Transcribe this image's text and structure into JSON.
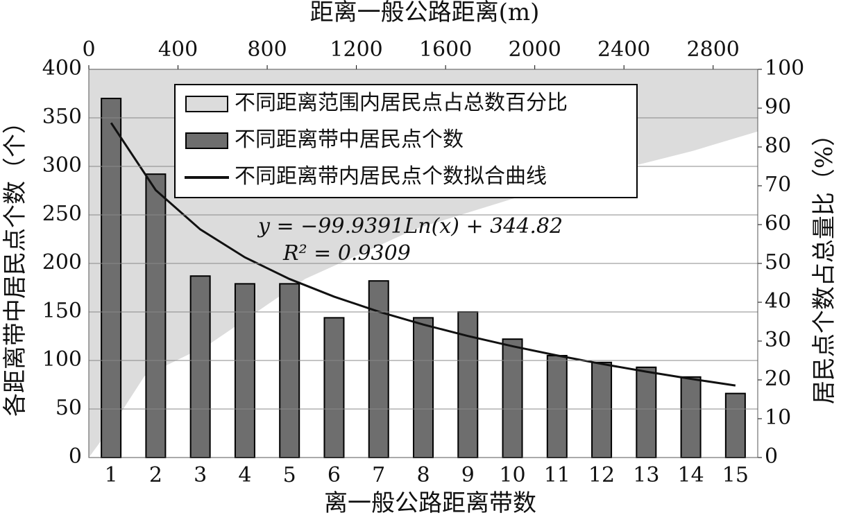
{
  "chart_data": {
    "type": "bar",
    "title": "距离一般公路距离(m)",
    "x_label": "离一般公路距离带数",
    "y_label": "各距离带中居民点个数（个）",
    "y2_label": "居民点个数占总量比（%）",
    "annotations": [
      "y = −99.9391Ln(x) + 344.82",
      "R² = 0.9309"
    ],
    "categories": [
      "1",
      "2",
      "3",
      "4",
      "5",
      "6",
      "7",
      "8",
      "9",
      "10",
      "11",
      "12",
      "13",
      "14",
      "15"
    ],
    "series": [
      {
        "name": "不同距离带中居民点个数",
        "type": "bar",
        "color": "#6e6e6e",
        "values": [
          370,
          292,
          187,
          179,
          179,
          144,
          182,
          144,
          150,
          122,
          105,
          98,
          93,
          83,
          66
        ]
      },
      {
        "name": "不同距离带内居民点个数拟合曲线",
        "type": "line",
        "color": "#111111",
        "values": [
          344.82,
          275.55,
          235.03,
          206.27,
          183.97,
          165.75,
          150.35,
          137.0,
          125.23,
          114.7,
          105.18,
          96.48,
          88.49,
          81.07,
          74.18
        ]
      },
      {
        "name": "不同距离范围内居民点占总数百分比",
        "type": "area",
        "axis": "y2",
        "color": "#dcdcdc",
        "x": [
          0,
          115,
          250,
          535,
          970,
          1470,
          2090,
          2710,
          3000
        ],
        "values": [
          0,
          9,
          21,
          29,
          46,
          59,
          70,
          79,
          84
        ]
      }
    ],
    "ylim": [
      0,
      400
    ],
    "yticks": [
      0,
      50,
      100,
      150,
      200,
      250,
      300,
      350,
      400
    ],
    "y2lim": [
      0,
      100
    ],
    "y2ticks": [
      0,
      10,
      20,
      30,
      40,
      50,
      60,
      70,
      80,
      90,
      100
    ],
    "x2lim": [
      0,
      3000
    ],
    "x2ticks": [
      0,
      400,
      800,
      1200,
      1600,
      2000,
      2400,
      2800
    ],
    "grid": true
  }
}
